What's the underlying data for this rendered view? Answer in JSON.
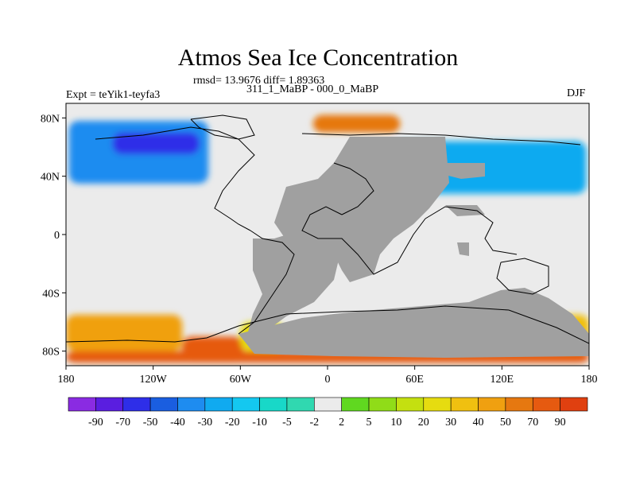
{
  "chart_data": {
    "type": "heatmap",
    "title": "Atmos Sea Ice Concentration",
    "stats": "rmsd= 13.9676 diff= 1.89363",
    "subtitle": "311_1_MaBP - 000_0_MaBP",
    "experiment": "Expt = teYik1-teyfa3",
    "season": "DJF",
    "x_ticks": [
      {
        "value": -180,
        "label": "180"
      },
      {
        "value": -120,
        "label": "120W"
      },
      {
        "value": -60,
        "label": "60W"
      },
      {
        "value": 0,
        "label": "0"
      },
      {
        "value": 60,
        "label": "60E"
      },
      {
        "value": 120,
        "label": "120E"
      },
      {
        "value": 180,
        "label": "180"
      }
    ],
    "y_ticks": [
      {
        "value": 80,
        "label": "80N"
      },
      {
        "value": 40,
        "label": "40N"
      },
      {
        "value": 0,
        "label": "0"
      },
      {
        "value": -40,
        "label": "40S"
      },
      {
        "value": -80,
        "label": "80S"
      }
    ],
    "xlim": [
      -180,
      180
    ],
    "ylim": [
      -90,
      90
    ],
    "colorbar": {
      "colors": [
        "#8a2be2",
        "#5a1ee0",
        "#2e2ee8",
        "#1a5ee0",
        "#1e8cf0",
        "#10aaf0",
        "#14c8f0",
        "#18d8c8",
        "#30d8b0",
        "#ebebeb",
        "#60d820",
        "#90dc18",
        "#c4e010",
        "#e6dc10",
        "#f0c010",
        "#f0a010",
        "#e67810",
        "#e65a10",
        "#e04010"
      ],
      "labels": [
        "-90",
        "-70",
        "-50",
        "-40",
        "-30",
        "-20",
        "-10",
        "-5",
        "-2",
        "2",
        "5",
        "10",
        "20",
        "30",
        "40",
        "50",
        "70",
        "90"
      ]
    },
    "colors": {
      "land": "#a0a0a0",
      "near_zero": "#ebebeb"
    },
    "regions": [
      {
        "name": "north-america-decrease",
        "lon": [
          -178,
          -82
        ],
        "lat": [
          35,
          78
        ],
        "value": -40
      },
      {
        "name": "north-america-core",
        "lon": [
          -148,
          -88
        ],
        "lat": [
          55,
          70
        ],
        "value": -60
      },
      {
        "name": "eurasia-decrease",
        "lon": [
          42,
          178
        ],
        "lat": [
          28,
          64
        ],
        "value": -30
      },
      {
        "name": "arctic-increase",
        "lon": [
          -10,
          50
        ],
        "lat": [
          70,
          82
        ],
        "value": 60
      },
      {
        "name": "antarctic-margin-increase",
        "lon": [
          -180,
          180
        ],
        "lat": [
          -88,
          -80
        ],
        "value": 70
      },
      {
        "name": "weddell-increase",
        "lon": [
          -100,
          -58
        ],
        "lat": [
          -88,
          -70
        ],
        "value": 85
      },
      {
        "name": "south-pacific-increase",
        "lon": [
          -180,
          -100
        ],
        "lat": [
          -80,
          -55
        ],
        "value": 40
      },
      {
        "name": "south-atlantic-increase",
        "lon": [
          -60,
          -30
        ],
        "lat": [
          -80,
          -60
        ],
        "value": 20
      },
      {
        "name": "south-east-increase",
        "lon": [
          158,
          180
        ],
        "lat": [
          -80,
          -55
        ],
        "value": 30
      }
    ]
  }
}
